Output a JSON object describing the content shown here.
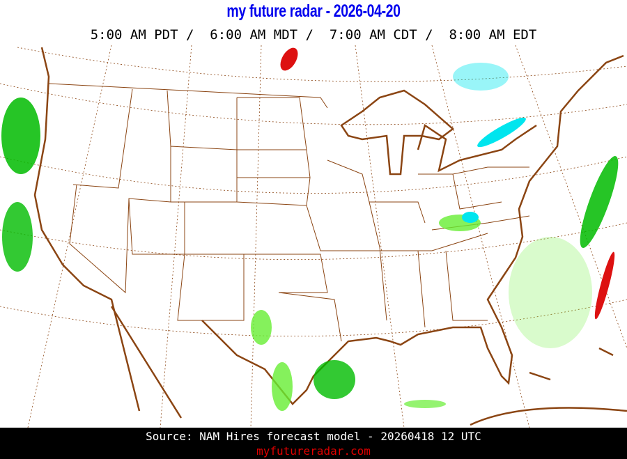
{
  "header": {
    "title": "my future radar - 2026-04-20",
    "times": "5:00 AM PDT /  6:00 AM MDT /  7:00 AM CDT /  8:00 AM EDT"
  },
  "footer": {
    "source": "Source: NAM Hires forecast model - 20260418 12 UTC",
    "site": "myfutureradar.com"
  },
  "colors": {
    "title": "#0000ee",
    "borders": "#8b4513",
    "rain_light": "#66ee33",
    "rain": "#00bb00",
    "snow": "#00e5ee",
    "heavy": "#dd1111",
    "site": "#e00000"
  }
}
